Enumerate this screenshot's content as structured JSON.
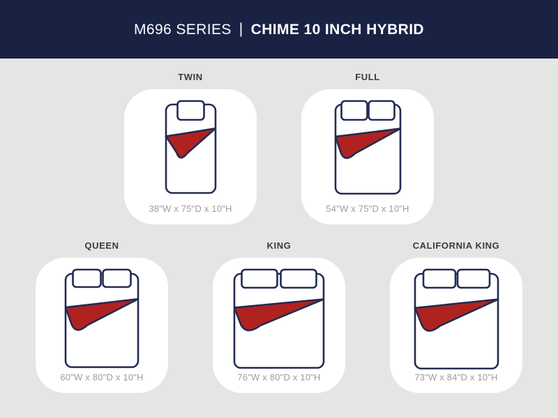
{
  "header": {
    "series": "M696 SERIES",
    "separator": "|",
    "product": "CHIME 10 INCH HYBRID"
  },
  "sizes": [
    {
      "id": "twin",
      "label": "TWIN",
      "dimensions": "38\"W x 75\"D x 10\"H",
      "icon": "twin-bed-icon",
      "row": 1
    },
    {
      "id": "full",
      "label": "FULL",
      "dimensions": "54\"W x 75\"D x 10\"H",
      "icon": "full-bed-icon",
      "row": 1
    },
    {
      "id": "queen",
      "label": "QUEEN",
      "dimensions": "60\"W x 80\"D x 10\"H",
      "icon": "queen-bed-icon",
      "row": 2
    },
    {
      "id": "king",
      "label": "KING",
      "dimensions": "76\"W x 80\"D x 10\"H",
      "icon": "king-bed-icon",
      "row": 2
    },
    {
      "id": "california-king",
      "label": "CALIFORNIA KING",
      "dimensions": "73\"W x 84\"D x 10\"H",
      "icon": "california-king-bed-icon",
      "row": 2
    }
  ],
  "colors": {
    "header_bg": "#1a2244",
    "background": "#e4e6e4",
    "card": "#ffffff",
    "outline": "#222b52",
    "blanket": "#b02220",
    "label_text": "#3b3b3b",
    "dims_text": "#9c9c9c"
  }
}
